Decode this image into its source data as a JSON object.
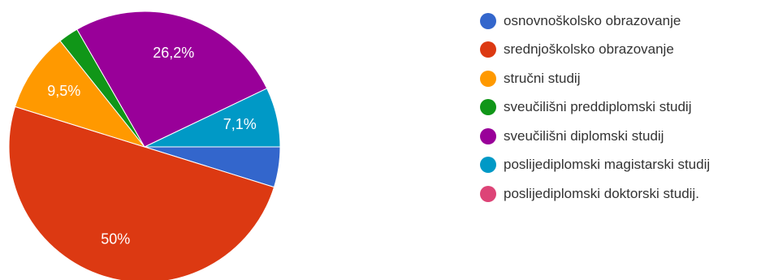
{
  "chart_data": {
    "type": "pie",
    "title": "",
    "legend_position": "right",
    "slices": [
      {
        "label": "osnovnoškolsko obrazovanje",
        "value": 4.8,
        "color": "#3366cc",
        "value_label": ""
      },
      {
        "label": "srednjoškolsko obrazovanje",
        "value": 50,
        "color": "#dc3912",
        "value_label": "50%"
      },
      {
        "label": "stručni studij",
        "value": 9.5,
        "color": "#ff9900",
        "value_label": "9,5%"
      },
      {
        "label": "sveučilišni preddiplomski studij",
        "value": 2.4,
        "color": "#109618",
        "value_label": ""
      },
      {
        "label": "sveučilišni diplomski studij",
        "value": 26.2,
        "color": "#990099",
        "value_label": "26,2%"
      },
      {
        "label": "poslijediplomski magistarski studij",
        "value": 7.1,
        "color": "#0099c6",
        "value_label": "7,1%"
      },
      {
        "label": "poslijediplomski doktorski studij.",
        "value": 0,
        "color": "#dd4477",
        "value_label": ""
      }
    ]
  }
}
